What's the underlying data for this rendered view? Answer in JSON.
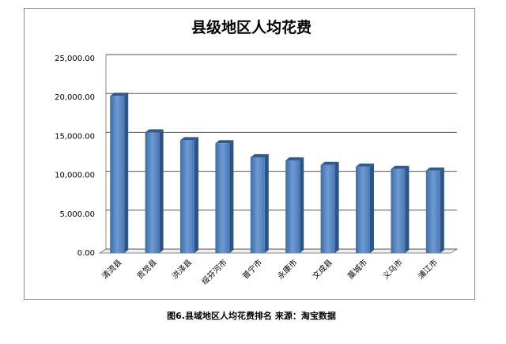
{
  "chart_data": {
    "type": "bar",
    "title": "县级地区人均花费",
    "categories": [
      "清流县",
      "贡觉县",
      "洪泽县",
      "绥芬河市",
      "普宁市",
      "永康市",
      "文成县",
      "藁城市",
      "义乌市",
      "浦江市"
    ],
    "values": [
      20200,
      15500,
      14500,
      14100,
      12300,
      11900,
      11300,
      11100,
      10800,
      10600
    ],
    "color": "#4f81bd",
    "ylim": [
      0,
      25000
    ],
    "yticks": [
      {
        "value": 0,
        "label": "0.00"
      },
      {
        "value": 5000,
        "label": "5,000.00"
      },
      {
        "value": 10000,
        "label": "10,000.00"
      },
      {
        "value": 15000,
        "label": "15,000.00"
      },
      {
        "value": 20000,
        "label": "20,000.00"
      },
      {
        "value": 25000,
        "label": "25,000.00"
      }
    ],
    "grid": true,
    "caption": "图6.县域地区人均花费排名 来源：淘宝数据"
  }
}
